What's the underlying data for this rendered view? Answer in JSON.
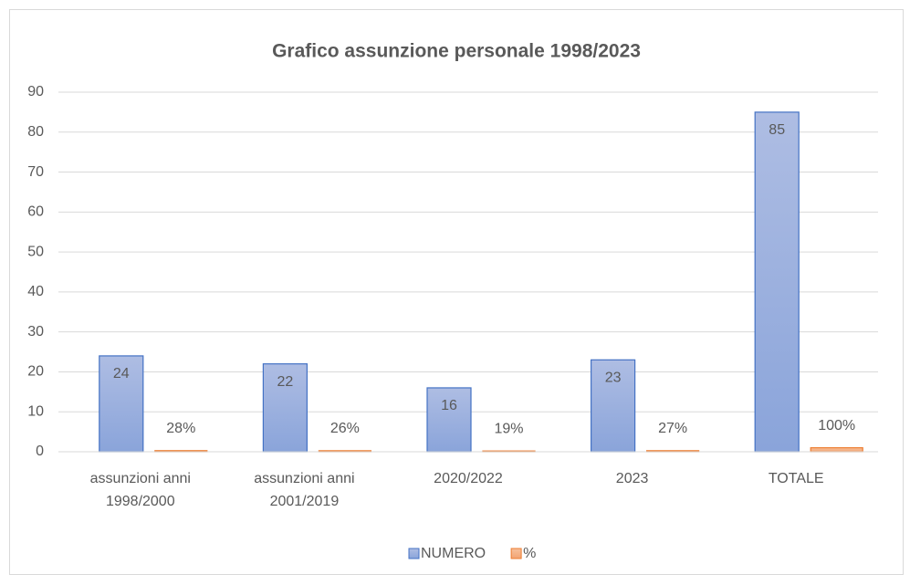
{
  "chart_data": {
    "type": "bar",
    "title": "Grafico assunzione personale 1998/2023",
    "categories": [
      "assunzioni anni 1998/2000",
      "assunzioni anni 2001/2019",
      "2020/2022",
      "2023",
      "TOTALE"
    ],
    "series": [
      {
        "name": "NUMERO",
        "color": "#4472c4",
        "values": [
          24,
          22,
          16,
          23,
          85
        ]
      },
      {
        "name": "%",
        "color": "#ed7d31",
        "values": [
          0.28,
          0.26,
          0.19,
          0.27,
          1.0
        ],
        "value_labels": [
          "28%",
          "26%",
          "19%",
          "27%",
          "100%"
        ]
      }
    ],
    "ylim": [
      0,
      90
    ],
    "yticks": [
      0,
      10,
      20,
      30,
      40,
      50,
      60,
      70,
      80,
      90
    ],
    "grid": true,
    "legend": "bottom"
  }
}
